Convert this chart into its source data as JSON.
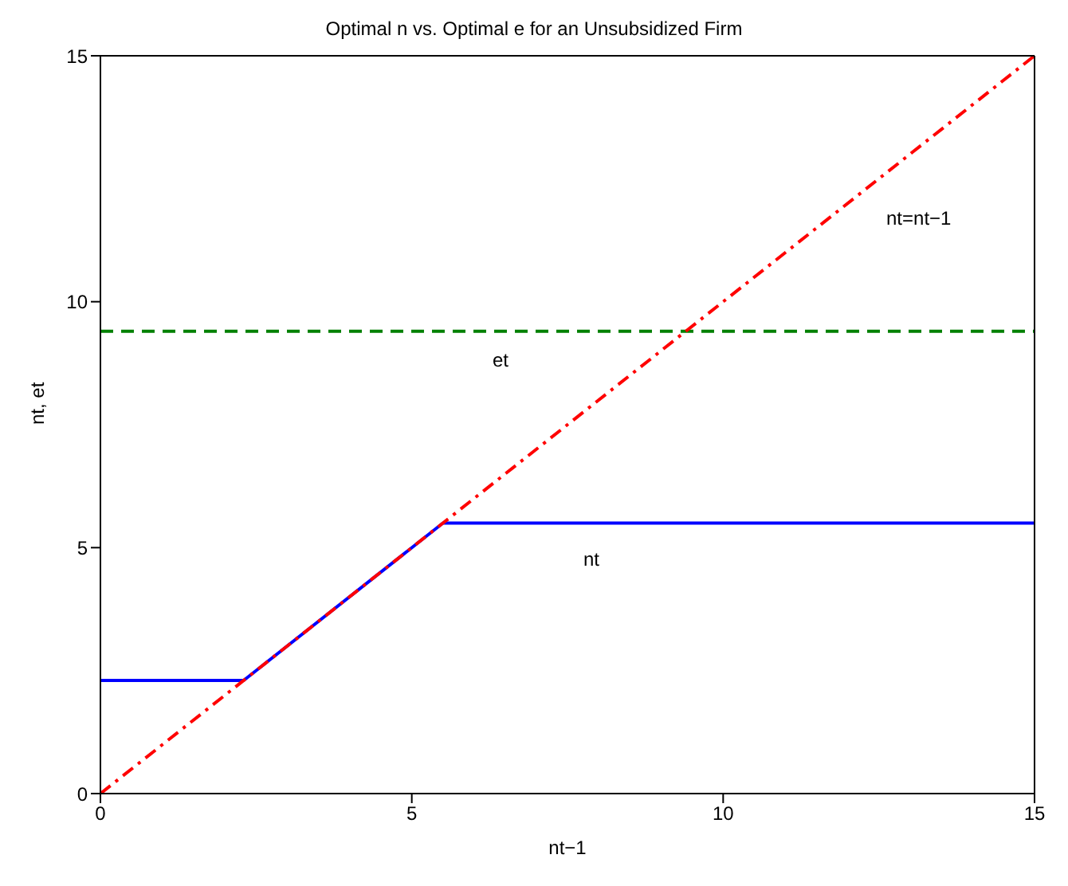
{
  "chart_data": {
    "type": "line",
    "title": "Optimal n vs. Optimal e for an Unsubsidized Firm",
    "xlabel": "nt−1",
    "ylabel": "nt, et",
    "series": [
      {
        "name": "nt",
        "x": [
          0,
          2.3,
          5.5,
          15
        ],
        "values": [
          2.3,
          2.3,
          5.5,
          5.5
        ],
        "color": "#0000ff",
        "line_style": "solid"
      },
      {
        "name": "et",
        "x": [
          0,
          15
        ],
        "values": [
          9.4,
          9.4
        ],
        "color": "#008000",
        "line_style": "dashed"
      },
      {
        "name": "nt=nt−1",
        "x": [
          0,
          15
        ],
        "values": [
          0,
          15
        ],
        "color": "#ff0000",
        "line_style": "dashdot"
      }
    ],
    "xlim": [
      0,
      15
    ],
    "ylim": [
      0,
      15
    ],
    "xticks": [
      0,
      5,
      10,
      15
    ],
    "yticks": [
      0,
      5,
      10,
      15
    ],
    "marker": "none"
  }
}
